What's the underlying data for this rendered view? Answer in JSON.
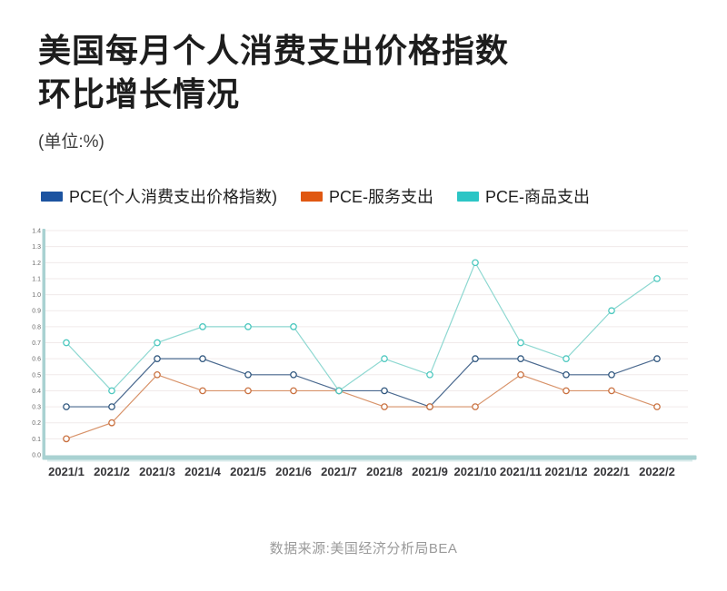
{
  "header": {
    "title_line1": "美国每月个人消费支出价格指数",
    "title_line2": "环比增长情况",
    "unit_label": "(单位:%)"
  },
  "legend": {
    "items": [
      {
        "label": "PCE(个人消费支出价格指数)",
        "color": "#1c53a0"
      },
      {
        "label": "PCE-服务支出",
        "color": "#e05812"
      },
      {
        "label": "PCE-商品支出",
        "color": "#2cc5c5"
      }
    ]
  },
  "chart_data": {
    "type": "line",
    "title": "美国每月个人消费支出价格指数环比增长情况",
    "xlabel": "",
    "ylabel": "",
    "unit": "%",
    "categories": [
      "2021/1",
      "2021/2",
      "2021/3",
      "2021/4",
      "2021/5",
      "2021/6",
      "2021/7",
      "2021/8",
      "2021/9",
      "2021/10",
      "2021/11",
      "2021/12",
      "2022/1",
      "2022/2"
    ],
    "series": [
      {
        "name": "PCE(个人消费支出价格指数)",
        "legend_color": "#1c53a0",
        "line_color": "#4a698f",
        "marker_color": "#2f567e",
        "values": [
          0.3,
          0.3,
          0.6,
          0.6,
          0.5,
          0.5,
          0.4,
          0.4,
          0.3,
          0.6,
          0.6,
          0.5,
          0.5,
          0.6
        ]
      },
      {
        "name": "PCE-服务支出",
        "legend_color": "#e05812",
        "line_color": "#d8936a",
        "marker_color": "#c9703f",
        "values": [
          0.1,
          0.2,
          0.5,
          0.4,
          0.4,
          0.4,
          0.4,
          0.3,
          0.3,
          0.3,
          0.5,
          0.4,
          0.4,
          0.3
        ]
      },
      {
        "name": "PCE-商品支出",
        "legend_color": "#2cc5c5",
        "line_color": "#8ed8d1",
        "marker_color": "#4dc8bf",
        "values": [
          0.7,
          0.4,
          0.7,
          0.8,
          0.8,
          0.8,
          0.4,
          0.6,
          0.5,
          1.2,
          0.7,
          0.6,
          0.9,
          1.1
        ]
      }
    ],
    "ylim": [
      0,
      1.4
    ],
    "ytick_step": 0.1,
    "ytick_labels": [
      "0.0",
      "0.1",
      "0.2",
      "0.3",
      "0.4",
      "0.5",
      "0.6",
      "0.7",
      "0.8",
      "0.9",
      "1.0",
      "1.1",
      "1.2",
      "1.3",
      "1.4"
    ],
    "grid": true,
    "legend_position": "top",
    "axis_color": "#a9d2d2",
    "axis_shadow_color": "#dcecec",
    "grid_color": "#f0eaea",
    "marker_fill": "#ffffff"
  },
  "footer": {
    "source": "数据来源:美国经济分析局BEA"
  }
}
